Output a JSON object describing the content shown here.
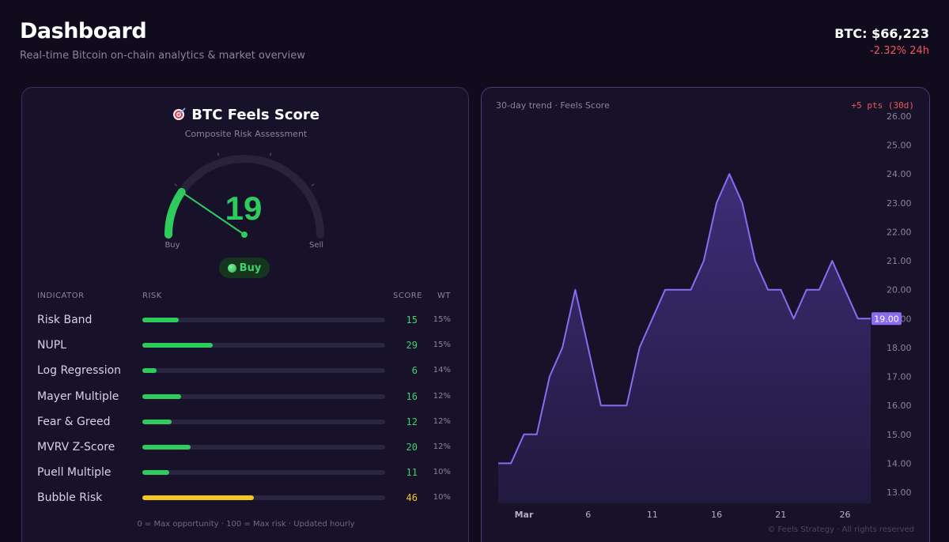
{
  "header": {
    "title": "Dashboard",
    "subtitle": "Real-time Bitcoin on-chain analytics & market overview",
    "price": "BTC: $66,223",
    "change": "-2.32% 24h"
  },
  "score_card": {
    "icon": "target-icon",
    "title": "BTC Feels Score",
    "subtitle": "Composite Risk Assessment",
    "value": "19",
    "score_fraction": 0.19,
    "gauge_buy_label": "Buy",
    "gauge_sell_label": "Sell",
    "badge_label": "Buy",
    "colors": {
      "good": "#2ecc5d",
      "warn": "#f2c81f",
      "negative": "#f05858",
      "accent": "#8b6cf0"
    }
  },
  "table": {
    "headers": {
      "indicator": "INDICATOR",
      "risk": "RISK",
      "score": "SCORE",
      "wt": "WT"
    },
    "rows": [
      {
        "label": "Risk Band",
        "score": "15",
        "wt": "15%",
        "risk": 15,
        "level": "ok"
      },
      {
        "label": "NUPL",
        "score": "29",
        "wt": "15%",
        "risk": 29,
        "level": "ok"
      },
      {
        "label": "Log Regression",
        "score": "6",
        "wt": "14%",
        "risk": 6,
        "level": "ok"
      },
      {
        "label": "Mayer Multiple",
        "score": "16",
        "wt": "12%",
        "risk": 16,
        "level": "ok"
      },
      {
        "label": "Fear & Greed",
        "score": "12",
        "wt": "12%",
        "risk": 12,
        "level": "ok"
      },
      {
        "label": "MVRV Z-Score",
        "score": "20",
        "wt": "12%",
        "risk": 20,
        "level": "ok"
      },
      {
        "label": "Puell Multiple",
        "score": "11",
        "wt": "10%",
        "risk": 11,
        "level": "ok"
      },
      {
        "label": "Bubble Risk",
        "score": "46",
        "wt": "10%",
        "risk": 46,
        "level": "warn"
      }
    ],
    "footnote": "0 = Max opportunity · 100 = Max risk · Updated hourly"
  },
  "trend": {
    "label": "30-day trend · Feels Score",
    "change": "+5 pts (30d)",
    "watermark": "© Feels Strategy · All rights reserved"
  },
  "chart_data": {
    "type": "area",
    "title": "30-day trend · Feels Score",
    "x": [
      0,
      1,
      2,
      3,
      4,
      5,
      6,
      7,
      8,
      9,
      10,
      11,
      12,
      13,
      14,
      15,
      16,
      17,
      18,
      19,
      20,
      21,
      22,
      23,
      24,
      25,
      26,
      27,
      28,
      29
    ],
    "values": [
      14,
      14,
      15,
      15,
      17,
      18,
      20,
      18,
      16,
      16,
      16,
      18,
      19,
      20,
      20,
      20,
      21,
      23,
      24,
      23,
      21,
      20,
      20,
      19,
      20,
      20,
      21,
      20,
      19,
      19
    ],
    "x_tick_labels": [
      {
        "x": 2,
        "label": "Mar"
      },
      {
        "x": 7,
        "label": "6"
      },
      {
        "x": 12,
        "label": "11"
      },
      {
        "x": 17,
        "label": "16"
      },
      {
        "x": 22,
        "label": "21"
      },
      {
        "x": 27,
        "label": "26"
      }
    ],
    "y_ticks": [
      "26.00",
      "25.00",
      "24.00",
      "23.00",
      "22.00",
      "21.00",
      "20.00",
      "19.00",
      "18.00",
      "17.00",
      "16.00",
      "15.00",
      "14.00",
      "13.00"
    ],
    "ylim": [
      13,
      26
    ],
    "current_value_label": "19.00",
    "current_value": 19,
    "line_color": "#8b6cf0"
  }
}
